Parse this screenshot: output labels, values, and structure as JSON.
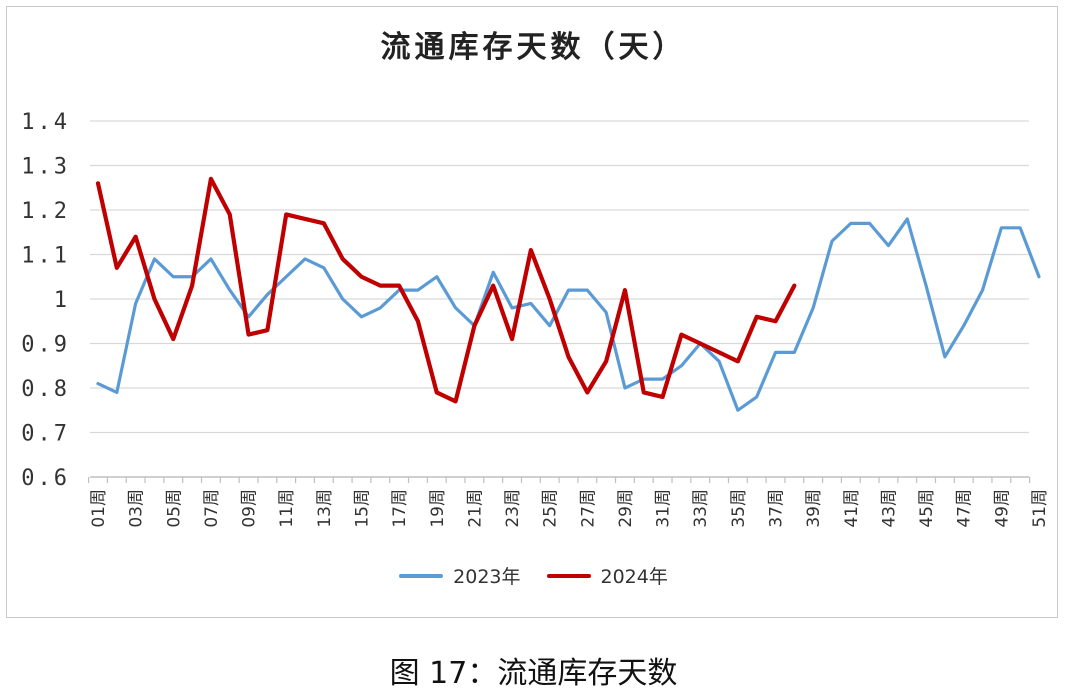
{
  "figure": {
    "caption": "图 17：流通库存天数"
  },
  "chart_data": {
    "type": "line",
    "title": "流通库存天数（天）",
    "xlabel": "",
    "ylabel": "",
    "ylim": [
      0.6,
      1.4
    ],
    "yticks": [
      "1.4",
      "1.3",
      "1.2",
      "1.1",
      "1",
      "0.9",
      "0.8",
      "0.7",
      "0.6"
    ],
    "ytick_values": [
      1.4,
      1.3,
      1.2,
      1.1,
      1.0,
      0.9,
      0.8,
      0.7,
      0.6
    ],
    "x_tick_labels": [
      "01周",
      "03周",
      "05周",
      "07周",
      "09周",
      "11周",
      "13周",
      "15周",
      "17周",
      "19周",
      "21周",
      "23周",
      "25周",
      "27周",
      "29周",
      "31周",
      "33周",
      "35周",
      "37周",
      "39周",
      "41周",
      "43周",
      "45周",
      "47周",
      "49周",
      "51周"
    ],
    "x_tick_weeks": [
      1,
      3,
      5,
      7,
      9,
      11,
      13,
      15,
      17,
      19,
      21,
      23,
      25,
      27,
      29,
      31,
      33,
      35,
      37,
      39,
      41,
      43,
      45,
      47,
      49,
      51
    ],
    "grid": "horizontal",
    "legend_position": "bottom",
    "series": [
      {
        "name": "2023年",
        "color": "#5b9bd5",
        "x": [
          1,
          2,
          3,
          4,
          5,
          6,
          7,
          8,
          9,
          10,
          11,
          12,
          13,
          14,
          15,
          16,
          17,
          18,
          19,
          20,
          21,
          22,
          23,
          24,
          25,
          26,
          27,
          28,
          29,
          30,
          31,
          32,
          33,
          34,
          35,
          36,
          37,
          38,
          39,
          40,
          41,
          42,
          43,
          44,
          45,
          46,
          47,
          48,
          49,
          50,
          51
        ],
        "values": [
          0.81,
          0.79,
          0.99,
          1.09,
          1.05,
          1.05,
          1.09,
          1.02,
          0.96,
          1.01,
          1.05,
          1.09,
          1.07,
          1.0,
          0.96,
          0.98,
          1.02,
          1.02,
          1.05,
          0.98,
          0.94,
          1.06,
          0.98,
          0.99,
          0.94,
          1.02,
          1.02,
          0.97,
          0.8,
          0.82,
          0.82,
          0.85,
          0.9,
          0.86,
          0.75,
          0.78,
          0.88,
          0.88,
          0.98,
          1.13,
          1.17,
          1.17,
          1.12,
          1.18,
          1.03,
          0.87,
          0.94,
          1.02,
          1.16,
          1.16,
          1.05
        ]
      },
      {
        "name": "2024年",
        "color": "#c00000",
        "x": [
          1,
          2,
          3,
          4,
          5,
          6,
          7,
          8,
          9,
          10,
          11,
          12,
          13,
          14,
          15,
          16,
          17,
          18,
          19,
          20,
          21,
          22,
          23,
          24,
          25,
          26,
          27,
          28,
          29,
          30,
          31,
          32,
          33,
          34,
          35,
          36,
          37,
          38
        ],
        "values": [
          1.26,
          1.07,
          1.14,
          1.0,
          0.91,
          1.03,
          1.27,
          1.19,
          0.92,
          0.93,
          1.19,
          1.18,
          1.17,
          1.09,
          1.05,
          1.03,
          1.03,
          0.95,
          0.79,
          0.77,
          0.94,
          1.03,
          0.91,
          1.11,
          1.0,
          0.87,
          0.79,
          0.86,
          1.02,
          0.79,
          0.78,
          0.92,
          0.9,
          0.88,
          0.86,
          0.96,
          0.95,
          1.03
        ]
      }
    ]
  }
}
